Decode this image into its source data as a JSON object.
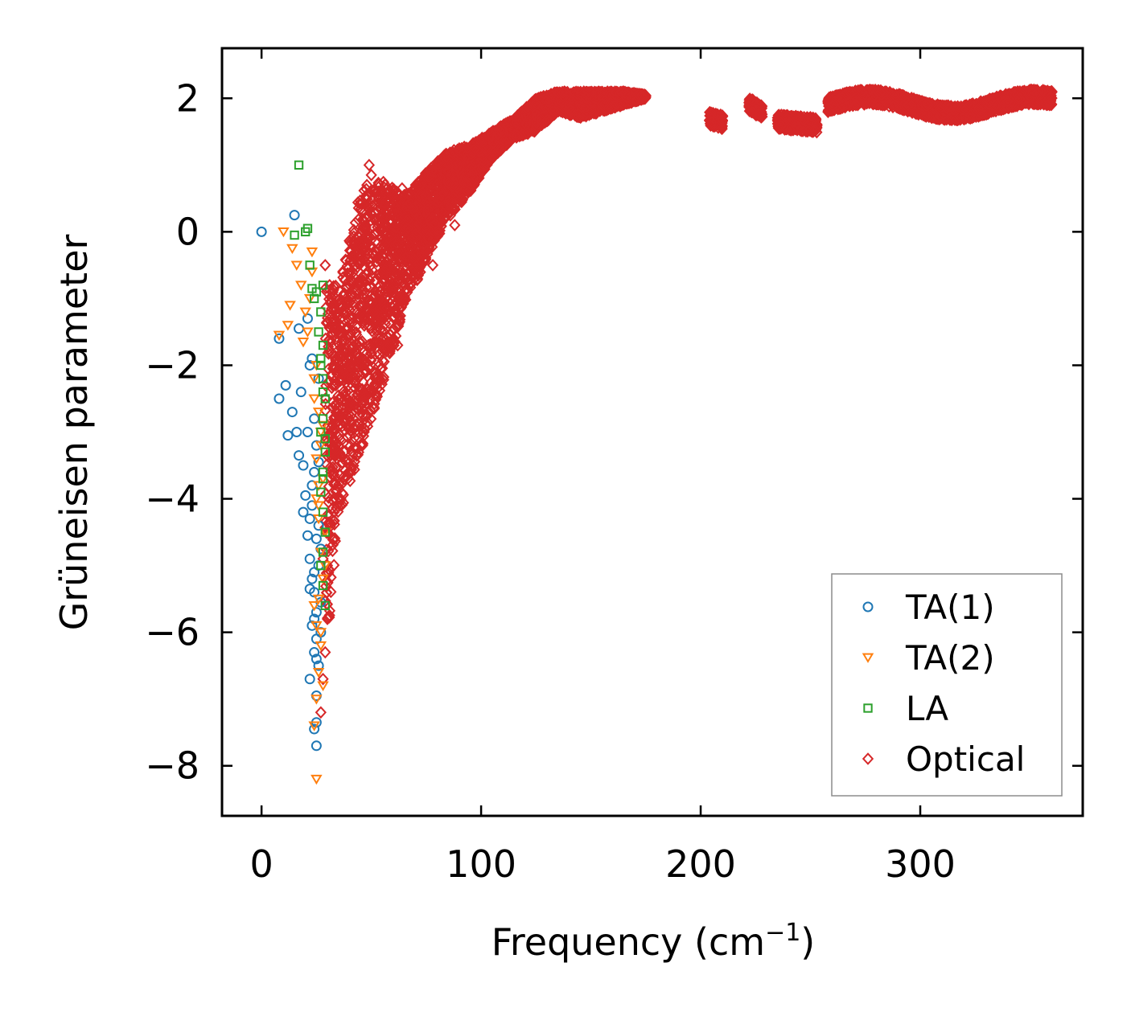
{
  "chart_data": {
    "type": "scatter",
    "title": "",
    "xlabel": "Frequency (cm",
    "xlabel_sup": "−1",
    "xlabel_tail": ")",
    "ylabel": "Grüneisen parameter",
    "xlim": [
      -18,
      374
    ],
    "ylim": [
      -8.75,
      2.75
    ],
    "xticks": [
      0,
      100,
      200,
      300
    ],
    "xtick_labels": [
      "0",
      "100",
      "200",
      "300"
    ],
    "yticks": [
      2,
      0,
      -2,
      -4,
      -6,
      -8
    ],
    "ytick_labels": [
      "2",
      "0",
      "−2",
      "−4",
      "−6",
      "−8"
    ],
    "grid": false,
    "legend_position": "lower-right",
    "series": [
      {
        "name": "TA(1)",
        "marker": "circle",
        "color": "#1f77b4",
        "x": [
          0,
          15,
          17,
          8,
          8,
          11,
          12,
          14,
          16,
          18,
          17,
          19,
          21,
          19,
          20,
          22,
          23,
          21,
          24,
          22,
          25,
          23,
          26,
          24,
          22,
          25,
          23,
          27,
          24,
          26,
          21,
          22,
          24,
          25,
          23,
          26,
          24,
          25,
          22,
          25,
          27,
          24,
          26,
          25,
          24,
          25,
          23,
          26,
          25,
          27
        ],
        "y": [
          0,
          0.25,
          -1.45,
          -1.6,
          -2.5,
          -2.3,
          -3.05,
          -2.7,
          -3.0,
          -2.4,
          -3.35,
          -3.5,
          -3.0,
          -4.2,
          -3.95,
          -4.3,
          -4.1,
          -4.55,
          -3.6,
          -4.9,
          -4.6,
          -5.2,
          -5.0,
          -5.4,
          -5.35,
          -5.7,
          -5.9,
          -6.0,
          -6.3,
          -6.5,
          -1.3,
          -2.0,
          -2.8,
          -3.2,
          -3.8,
          -4.4,
          -5.8,
          -6.1,
          -6.7,
          -6.95,
          -4.75,
          -5.1,
          -3.45,
          -7.35,
          -7.45,
          -7.7,
          -1.9,
          -2.2,
          -6.4,
          -5.55
        ]
      },
      {
        "name": "TA(2)",
        "marker": "triangle-down",
        "color": "#ff7f0e",
        "x": [
          10,
          14,
          16,
          13,
          18,
          20,
          12,
          8,
          19,
          23,
          21,
          25,
          24,
          26,
          22,
          27,
          25,
          28,
          24,
          26,
          29,
          25,
          27,
          28,
          26,
          24,
          29,
          25,
          27,
          23,
          26,
          28,
          25,
          24,
          27,
          26,
          28,
          25,
          26,
          27
        ],
        "y": [
          0,
          -0.25,
          -0.5,
          -1.1,
          -0.8,
          -1.2,
          -1.4,
          -1.55,
          -1.65,
          -0.3,
          -1.5,
          -2.0,
          -2.5,
          -2.7,
          -1.0,
          -3.0,
          -3.4,
          -3.7,
          -2.2,
          -4.1,
          -4.5,
          -4.0,
          -4.8,
          -5.2,
          -5.5,
          -5.6,
          -5.0,
          -5.9,
          -6.2,
          -0.6,
          -6.6,
          -6.8,
          -7.0,
          -7.4,
          -3.2,
          -3.8,
          -2.9,
          -8.2,
          -4.3,
          -6.0
        ]
      },
      {
        "name": "LA",
        "marker": "square",
        "color": "#2ca02c",
        "x": [
          17,
          21,
          20,
          15,
          22,
          23,
          24,
          25,
          27,
          28,
          26,
          27,
          28,
          29,
          28,
          27,
          29,
          28,
          27,
          28,
          29,
          28,
          27,
          28,
          29,
          28,
          27,
          28,
          29,
          28
        ],
        "y": [
          1.0,
          0.05,
          0.0,
          -0.05,
          -0.5,
          -0.85,
          -1.0,
          -0.9,
          -1.2,
          -0.8,
          -1.5,
          -1.9,
          -2.2,
          -2.5,
          -2.8,
          -3.0,
          -3.3,
          -3.6,
          -3.9,
          -4.2,
          -4.5,
          -4.8,
          -5.0,
          -5.3,
          -5.6,
          -1.7,
          -2.0,
          -2.4,
          -3.1,
          -3.7
        ]
      },
      {
        "name": "Optical",
        "marker": "diamond",
        "color": "#d62728",
        "envelope": {
          "x": [
            29,
            35,
            45,
            55,
            65,
            75,
            85,
            95,
            105,
            115,
            125,
            135,
            145,
            155,
            165,
            175
          ],
          "lo": [
            -6.5,
            -4.3,
            -3.3,
            -2.3,
            -1.2,
            -0.4,
            0.2,
            0.6,
            1.1,
            1.4,
            1.5,
            1.8,
            1.7,
            1.8,
            1.9,
            2.0
          ],
          "hi": [
            -0.8,
            -0.8,
            0.6,
            0.8,
            0.5,
            0.9,
            1.2,
            1.3,
            1.5,
            1.7,
            2.0,
            2.1,
            2.1,
            2.1,
            2.1,
            2.05
          ]
        },
        "bands": [
          {
            "x": [
              204,
              210
            ],
            "y": [
              1.7,
              1.65
            ]
          },
          {
            "x": [
              222,
              228
            ],
            "y": [
              1.9,
              1.8
            ]
          },
          {
            "x": [
              235,
              253
            ],
            "y": [
              1.65,
              1.6
            ]
          },
          {
            "x": [
              258,
              360
            ],
            "y": [
              1.9,
              1.9
            ]
          }
        ],
        "extra": [
          {
            "x": 49,
            "y": 1.0
          },
          {
            "x": 50,
            "y": 0.85
          },
          {
            "x": 48,
            "y": 0.7
          },
          {
            "x": 64,
            "y": 0.65
          },
          {
            "x": 65,
            "y": 0.55
          },
          {
            "x": 58,
            "y": 0.6
          },
          {
            "x": 70,
            "y": 0.3
          },
          {
            "x": 29,
            "y": -0.5
          },
          {
            "x": 31,
            "y": -0.8
          },
          {
            "x": 30,
            "y": -5.0
          },
          {
            "x": 30,
            "y": -5.8
          },
          {
            "x": 29,
            "y": -6.3
          },
          {
            "x": 28,
            "y": -6.7
          },
          {
            "x": 27,
            "y": -7.2
          },
          {
            "x": 28,
            "y": -4.9
          },
          {
            "x": 33,
            "y": -4.2
          },
          {
            "x": 36,
            "y": -4.0
          },
          {
            "x": 40,
            "y": -3.6
          },
          {
            "x": 46,
            "y": -3.2
          },
          {
            "x": 55,
            "y": -2.2
          },
          {
            "x": 62,
            "y": -1.7
          },
          {
            "x": 78,
            "y": -0.5
          },
          {
            "x": 88,
            "y": 0.1
          },
          {
            "x": 94,
            "y": 0.6
          }
        ]
      }
    ]
  }
}
